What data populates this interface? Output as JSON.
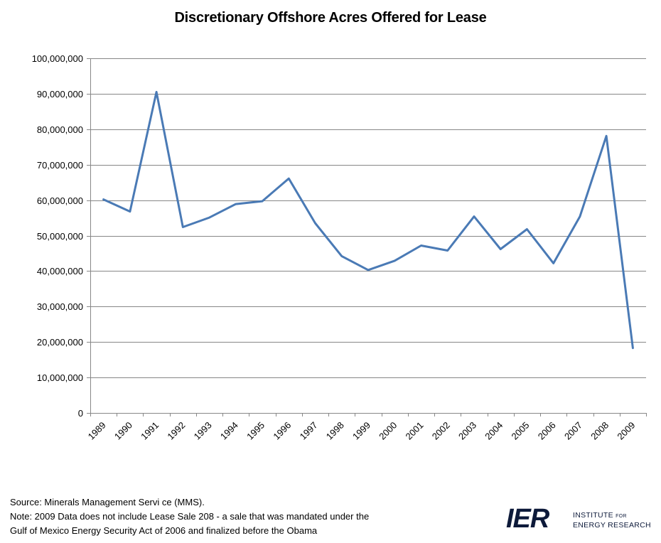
{
  "chart_data": {
    "type": "line",
    "title": "Discretionary Offshore Acres Offered for Lease",
    "xlabel": "",
    "ylabel": "",
    "ylim": [
      0,
      100000000
    ],
    "yticks": [
      "0",
      "10,000,000",
      "20,000,000",
      "30,000,000",
      "40,000,000",
      "50,000,000",
      "60,000,000",
      "70,000,000",
      "80,000,000",
      "90,000,000",
      "100,000,000"
    ],
    "categories": [
      "1989",
      "1990",
      "1991",
      "1992",
      "1993",
      "1994",
      "1995",
      "1996",
      "1997",
      "1998",
      "1999",
      "2000",
      "2001",
      "2002",
      "2003",
      "2004",
      "2005",
      "2006",
      "2007",
      "2008",
      "2009"
    ],
    "series": [
      {
        "values": [
          60200000,
          56800000,
          90500000,
          52400000,
          55100000,
          58900000,
          59700000,
          66100000,
          53500000,
          44200000,
          40300000,
          42900000,
          47200000,
          45800000,
          55400000,
          46200000,
          51800000,
          42200000,
          55400000,
          78100000,
          18300000
        ]
      }
    ],
    "grid": true,
    "legend": "none",
    "line_color": "#4a7ab5",
    "grid_color": "#878787"
  },
  "footer": {
    "source": "Source:  Minerals Management Servi ce (MMS).",
    "note_line1": "Note: 2009 Data does not include Lease Sale 208 - a sale that was mandated under the",
    "note_line2": "Gulf of Mexico Energy Security Act of 2006 and finalized before the Obama"
  },
  "logo": {
    "mark": "IER",
    "line1_a": "INSTITUTE ",
    "line1_b": "FOR",
    "line2": "ENERGY RESEARCH",
    "color": "#0d1a3a"
  }
}
